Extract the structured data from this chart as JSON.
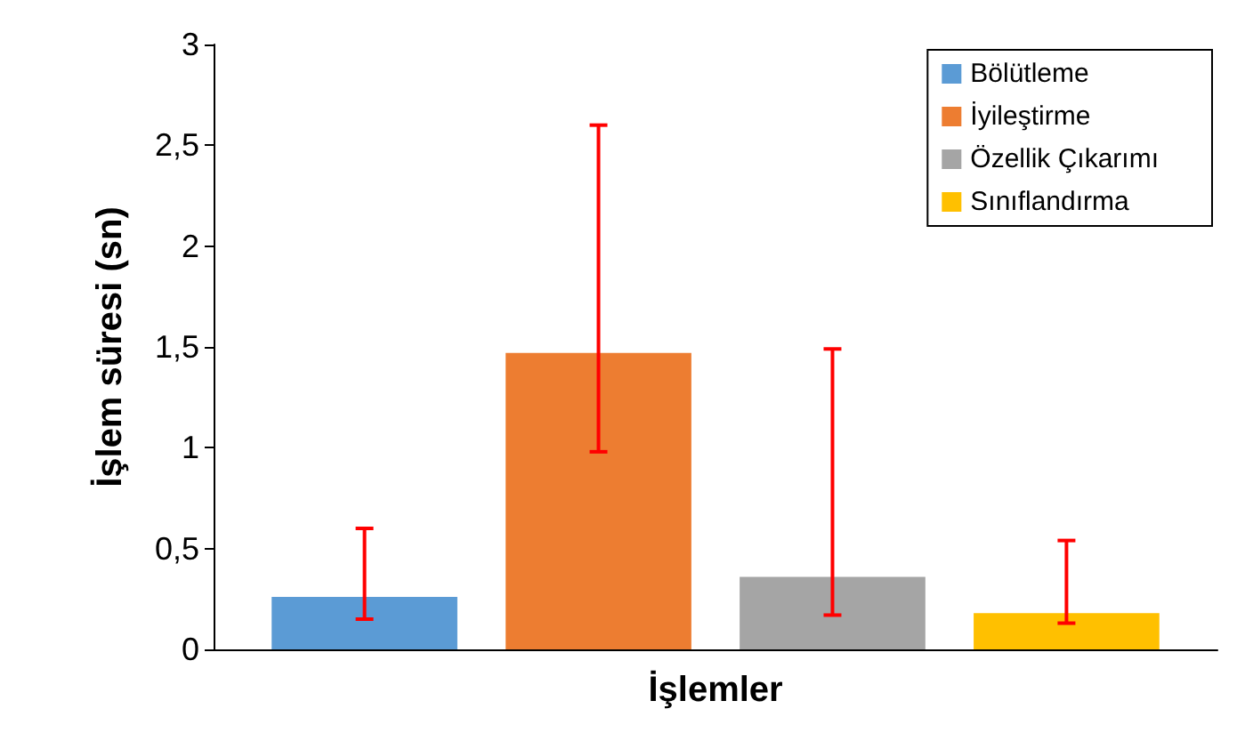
{
  "chart_data": {
    "type": "bar",
    "xlabel": "İşlemler",
    "ylabel": "İşlem süresi (sn)",
    "categories": [
      null
    ],
    "series": [
      {
        "name": "Bölütleme",
        "color": "#5b9bd5",
        "values": [
          0.26
        ],
        "errors": [
          [
            0.15,
            0.6
          ]
        ]
      },
      {
        "name": "İyileştirme",
        "color": "#ed7d31",
        "values": [
          1.47
        ],
        "errors": [
          [
            0.98,
            2.6
          ]
        ]
      },
      {
        "name": "Özellik Çıkarımı",
        "color": "#a5a5a5",
        "values": [
          0.36
        ],
        "errors": [
          [
            0.17,
            1.49
          ]
        ]
      },
      {
        "name": "Sınıflandırma",
        "color": "#ffc000",
        "values": [
          0.18
        ],
        "errors": [
          [
            0.13,
            0.54
          ]
        ]
      }
    ],
    "ylim": [
      0,
      3
    ],
    "yticks": [
      0,
      {
        "value": 0.5,
        "label": "0,5"
      },
      1,
      {
        "value": 1.5,
        "label": "1,5"
      },
      2,
      {
        "value": 2.5,
        "label": "2,5"
      },
      3
    ],
    "grid": false,
    "legend": "top right"
  }
}
